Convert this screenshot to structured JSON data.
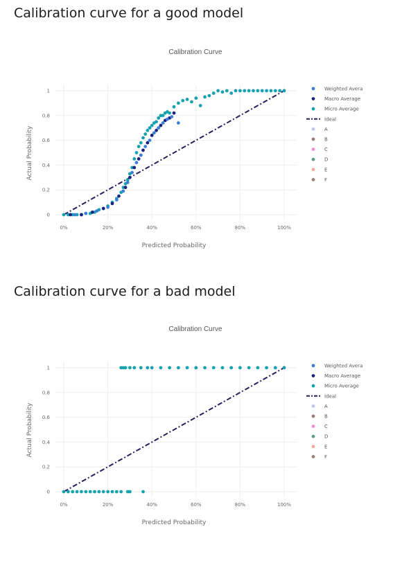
{
  "sections": [
    {
      "heading": "Calibration curve for a good model"
    },
    {
      "heading": "Calibration curve for a bad model"
    }
  ],
  "colors": {
    "weighted": "#3b7fd6",
    "macro": "#1a237e",
    "micro": "#17a2b0",
    "ideal": "#2d1b5e"
  },
  "chart_data": [
    {
      "type": "scatter",
      "title": "Calibration Curve",
      "xlabel": "Predicted Probability",
      "ylabel": "Actual Probability",
      "xlim": [
        0,
        1
      ],
      "ylim": [
        0,
        1
      ],
      "x_ticks": [
        "0%",
        "20%",
        "40%",
        "60%",
        "80%",
        "100%"
      ],
      "y_ticks": [
        "0",
        "0.2",
        "0.4",
        "0.6",
        "0.8",
        "1"
      ],
      "grid": true,
      "legend_position": "right",
      "legend": [
        {
          "label": "Weighted Avera",
          "color": "#3b7fd6",
          "marker": "dot"
        },
        {
          "label": "Macro Average",
          "color": "#1a237e",
          "marker": "dot"
        },
        {
          "label": "Micro Average",
          "color": "#17a2b0",
          "marker": "dot"
        },
        {
          "label": "Ideal",
          "color": "#2d1b5e",
          "marker": "dashdot"
        },
        {
          "label": "A",
          "color": "#c5c7e8",
          "marker": "dot"
        },
        {
          "label": "B",
          "color": "#a07878",
          "marker": "dot"
        },
        {
          "label": "C",
          "color": "#f08fd0",
          "marker": "dot"
        },
        {
          "label": "D",
          "color": "#5a9a8a",
          "marker": "dot"
        },
        {
          "label": "E",
          "color": "#f4a8a0",
          "marker": "dot"
        },
        {
          "label": "F",
          "color": "#9e8470",
          "marker": "dot"
        }
      ],
      "series": [
        {
          "name": "Ideal",
          "kind": "line",
          "x": [
            0,
            1
          ],
          "y": [
            0,
            1
          ]
        },
        {
          "name": "Micro Average",
          "kind": "scatter",
          "x": [
            0.0,
            0.02,
            0.04,
            0.06,
            0.08,
            0.1,
            0.12,
            0.14,
            0.16,
            0.18,
            0.2,
            0.22,
            0.24,
            0.26,
            0.27,
            0.28,
            0.29,
            0.3,
            0.31,
            0.32,
            0.33,
            0.34,
            0.35,
            0.36,
            0.37,
            0.38,
            0.39,
            0.4,
            0.41,
            0.42,
            0.43,
            0.44,
            0.45,
            0.46,
            0.47,
            0.48,
            0.5,
            0.52,
            0.54,
            0.56,
            0.58,
            0.6,
            0.62,
            0.64,
            0.66,
            0.68,
            0.7,
            0.72,
            0.74,
            0.76,
            0.78,
            0.8,
            0.82,
            0.84,
            0.86,
            0.88,
            0.9,
            0.92,
            0.94,
            0.96,
            0.98,
            1.0
          ],
          "y": [
            0.0,
            0.0,
            0.0,
            0.0,
            0.0,
            0.01,
            0.01,
            0.02,
            0.04,
            0.05,
            0.07,
            0.1,
            0.13,
            0.18,
            0.22,
            0.25,
            0.28,
            0.33,
            0.38,
            0.45,
            0.5,
            0.55,
            0.58,
            0.62,
            0.65,
            0.68,
            0.7,
            0.72,
            0.74,
            0.75,
            0.78,
            0.8,
            0.8,
            0.82,
            0.83,
            0.82,
            0.87,
            0.9,
            0.92,
            0.93,
            0.91,
            0.94,
            0.88,
            0.95,
            0.96,
            0.98,
            1.0,
            0.99,
            1.0,
            0.98,
            1.0,
            1.0,
            1.0,
            1.0,
            1.0,
            1.0,
            1.0,
            1.0,
            1.0,
            1.0,
            1.0,
            1.0
          ]
        },
        {
          "name": "Macro Average",
          "kind": "scatter",
          "x": [
            0.03,
            0.08,
            0.13,
            0.18,
            0.22,
            0.25,
            0.28,
            0.3,
            0.32,
            0.34,
            0.36,
            0.38,
            0.4,
            0.42,
            0.44,
            0.46,
            0.48,
            0.5
          ],
          "y": [
            0.0,
            0.0,
            0.02,
            0.05,
            0.09,
            0.15,
            0.22,
            0.3,
            0.38,
            0.45,
            0.52,
            0.58,
            0.64,
            0.68,
            0.72,
            0.76,
            0.78,
            0.82
          ]
        },
        {
          "name": "Weighted Avera",
          "kind": "scatter",
          "x": [
            0.05,
            0.1,
            0.15,
            0.2,
            0.24,
            0.27,
            0.29,
            0.31,
            0.33,
            0.35,
            0.37,
            0.39,
            0.41,
            0.43,
            0.45,
            0.47,
            0.49,
            0.52
          ],
          "y": [
            0.0,
            0.01,
            0.03,
            0.06,
            0.12,
            0.19,
            0.26,
            0.34,
            0.42,
            0.48,
            0.55,
            0.6,
            0.66,
            0.7,
            0.74,
            0.77,
            0.79,
            0.74
          ]
        }
      ]
    },
    {
      "type": "scatter",
      "title": "Calibration Curve",
      "xlabel": "Predicted Probability",
      "ylabel": "Actual Probability",
      "xlim": [
        0,
        1
      ],
      "ylim": [
        0,
        1
      ],
      "x_ticks": [
        "0%",
        "20%",
        "40%",
        "60%",
        "80%",
        "100%"
      ],
      "y_ticks": [
        "0",
        "0.2",
        "0.4",
        "0.6",
        "0.8",
        "1"
      ],
      "grid": true,
      "legend_position": "right",
      "legend": [
        {
          "label": "Weighted Avera",
          "color": "#3b7fd6",
          "marker": "dot"
        },
        {
          "label": "Macro Average",
          "color": "#1a237e",
          "marker": "dot"
        },
        {
          "label": "Micro Average",
          "color": "#17a2b0",
          "marker": "dot"
        },
        {
          "label": "Ideal",
          "color": "#2d1b5e",
          "marker": "dashdot"
        },
        {
          "label": "A",
          "color": "#c5c7e8",
          "marker": "dot"
        },
        {
          "label": "B",
          "color": "#a07878",
          "marker": "dot"
        },
        {
          "label": "C",
          "color": "#f08fd0",
          "marker": "dot"
        },
        {
          "label": "D",
          "color": "#5a9a8a",
          "marker": "dot"
        },
        {
          "label": "E",
          "color": "#f4a8a0",
          "marker": "dot"
        },
        {
          "label": "F",
          "color": "#9e8470",
          "marker": "dot"
        }
      ],
      "series": [
        {
          "name": "Ideal",
          "kind": "line",
          "x": [
            0,
            1
          ],
          "y": [
            0,
            1
          ]
        },
        {
          "name": "Micro Average",
          "kind": "scatter",
          "x": [
            0.0,
            0.02,
            0.04,
            0.06,
            0.08,
            0.1,
            0.12,
            0.14,
            0.16,
            0.18,
            0.2,
            0.22,
            0.24,
            0.26,
            0.29,
            0.3,
            0.36,
            0.26,
            0.27,
            0.28,
            0.3,
            0.32,
            0.35,
            0.38,
            0.4,
            0.44,
            0.48,
            0.52,
            0.56,
            0.6,
            0.64,
            0.68,
            0.72,
            0.76,
            0.8,
            0.84,
            0.88,
            0.92,
            0.96,
            1.0
          ],
          "y": [
            0,
            0,
            0,
            0,
            0,
            0,
            0,
            0,
            0,
            0,
            0,
            0,
            0,
            0,
            0,
            0,
            0,
            1,
            1,
            1,
            1,
            1,
            1,
            1,
            1,
            1,
            1,
            1,
            1,
            1,
            1,
            1,
            1,
            1,
            1,
            1,
            1,
            1,
            1,
            1
          ]
        }
      ]
    }
  ]
}
